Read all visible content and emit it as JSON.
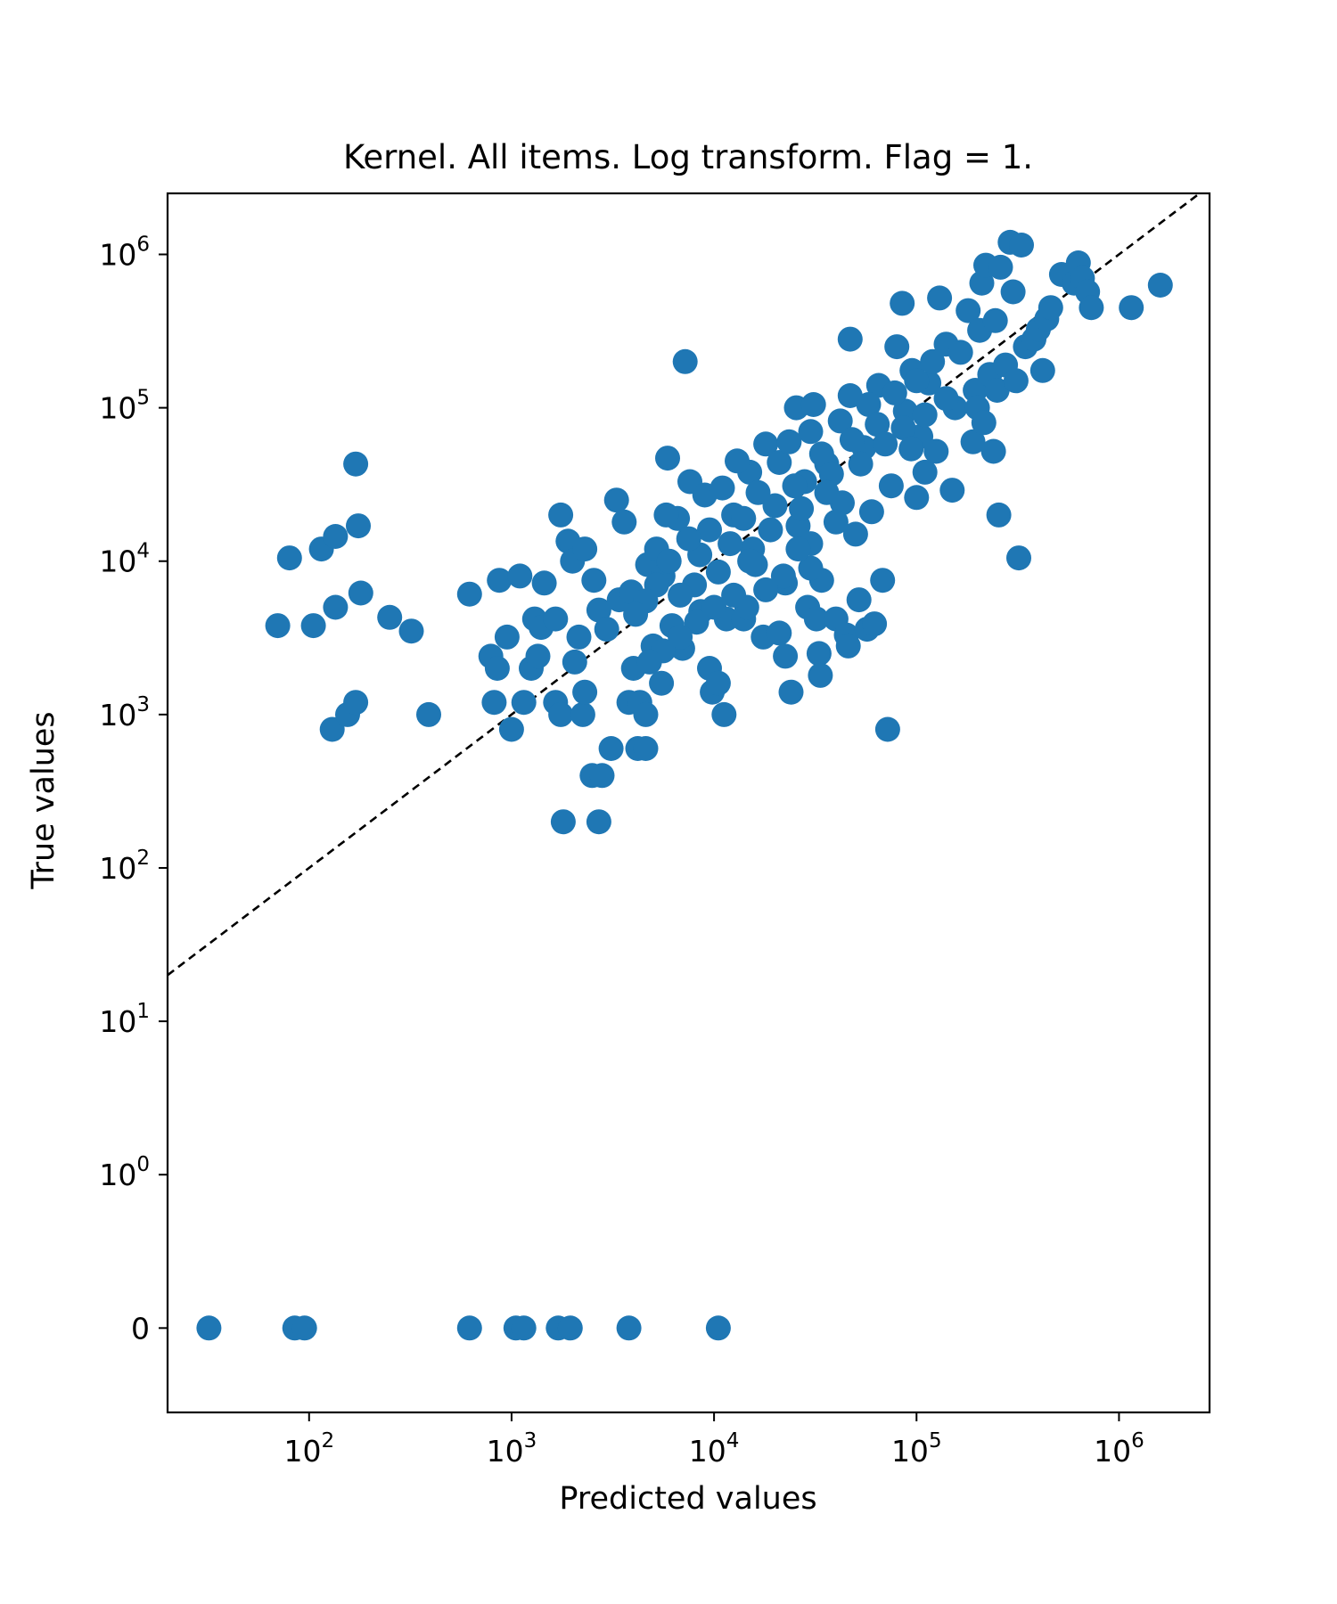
{
  "chart_data": {
    "type": "scatter",
    "title": "Kernel. All items. Log transform. Flag = 1.",
    "xlabel": "Predicted values",
    "ylabel": "True values",
    "x_scale": "log",
    "y_scale": "symlog",
    "xlim": [
      20,
      2800000
    ],
    "ylim": [
      -0.55,
      2500000
    ],
    "x_ticks": [
      {
        "value": 100,
        "base": "10",
        "exp": "2"
      },
      {
        "value": 1000,
        "base": "10",
        "exp": "3"
      },
      {
        "value": 10000,
        "base": "10",
        "exp": "4"
      },
      {
        "value": 100000,
        "base": "10",
        "exp": "5"
      },
      {
        "value": 1000000,
        "base": "10",
        "exp": "6"
      }
    ],
    "y_ticks": [
      {
        "value": 0,
        "label": "0"
      },
      {
        "value": 1,
        "base": "10",
        "exp": "0"
      },
      {
        "value": 10,
        "base": "10",
        "exp": "1"
      },
      {
        "value": 100,
        "base": "10",
        "exp": "2"
      },
      {
        "value": 1000,
        "base": "10",
        "exp": "3"
      },
      {
        "value": 10000,
        "base": "10",
        "exp": "4"
      },
      {
        "value": 100000,
        "base": "10",
        "exp": "5"
      },
      {
        "value": 1000000,
        "base": "10",
        "exp": "6"
      }
    ],
    "reference_line": "y = x (dashed, black)",
    "grid": false,
    "legend": "none",
    "marker_color": "#1f77b4",
    "series": [
      {
        "points": [
          [
            32,
            0
          ],
          [
            85,
            0
          ],
          [
            95,
            0
          ],
          [
            620,
            0
          ],
          [
            1050,
            0
          ],
          [
            1150,
            0
          ],
          [
            1700,
            0
          ],
          [
            1950,
            0
          ],
          [
            3800,
            0
          ],
          [
            10500,
            0
          ],
          [
            70,
            3800
          ],
          [
            80,
            10500
          ],
          [
            105,
            3800
          ],
          [
            115,
            12000
          ],
          [
            130,
            800
          ],
          [
            135,
            5000
          ],
          [
            135,
            14500
          ],
          [
            155,
            1000
          ],
          [
            170,
            1200
          ],
          [
            170,
            43000
          ],
          [
            175,
            17000
          ],
          [
            180,
            6200
          ],
          [
            250,
            4300
          ],
          [
            320,
            3500
          ],
          [
            390,
            1000
          ],
          [
            620,
            6100
          ],
          [
            790,
            2400
          ],
          [
            820,
            1200
          ],
          [
            850,
            2000
          ],
          [
            870,
            7500
          ],
          [
            950,
            3200
          ],
          [
            1000,
            800
          ],
          [
            1100,
            8000
          ],
          [
            1150,
            1200
          ],
          [
            1250,
            2000
          ],
          [
            1300,
            4200
          ],
          [
            1350,
            2400
          ],
          [
            1400,
            3700
          ],
          [
            1450,
            7200
          ],
          [
            1650,
            1200
          ],
          [
            1650,
            4200
          ],
          [
            1750,
            20000
          ],
          [
            1750,
            1000
          ],
          [
            1800,
            200
          ],
          [
            1900,
            13500
          ],
          [
            2050,
            2200
          ],
          [
            2000,
            10000
          ],
          [
            2250,
            1000
          ],
          [
            2300,
            1400
          ],
          [
            2300,
            12000
          ],
          [
            2150,
            3200
          ],
          [
            2500,
            400
          ],
          [
            2550,
            7500
          ],
          [
            2700,
            200
          ],
          [
            2800,
            400
          ],
          [
            2700,
            4800
          ],
          [
            2950,
            3600
          ],
          [
            3100,
            600
          ],
          [
            3300,
            25000
          ],
          [
            3400,
            5600
          ],
          [
            3600,
            18000
          ],
          [
            3800,
            1200
          ],
          [
            3900,
            6300
          ],
          [
            4000,
            2000
          ],
          [
            4200,
            600
          ],
          [
            4300,
            1200
          ],
          [
            4600,
            600
          ],
          [
            4600,
            1000
          ],
          [
            4700,
            9500
          ],
          [
            5000,
            2800
          ],
          [
            5200,
            12000
          ],
          [
            5500,
            1600
          ],
          [
            5600,
            8000
          ],
          [
            5900,
            47000
          ],
          [
            6200,
            3800
          ],
          [
            6600,
            19000
          ],
          [
            7000,
            2700
          ],
          [
            7200,
            200000
          ],
          [
            7600,
            33000
          ],
          [
            8000,
            7000
          ],
          [
            8600,
            4700
          ],
          [
            9500,
            2000
          ],
          [
            9800,
            1400
          ],
          [
            10500,
            1600
          ],
          [
            11200,
            1000
          ],
          [
            11500,
            4200
          ],
          [
            12500,
            20000
          ],
          [
            14000,
            4200
          ],
          [
            14500,
            5000
          ],
          [
            15000,
            38000
          ],
          [
            15500,
            12000
          ],
          [
            16000,
            9500
          ],
          [
            17500,
            3200
          ],
          [
            18000,
            58000
          ],
          [
            20000,
            23000
          ],
          [
            21000,
            3400
          ],
          [
            22500,
            2400
          ],
          [
            22500,
            7200
          ],
          [
            24000,
            1400
          ],
          [
            25500,
            100000
          ],
          [
            26000,
            17000
          ],
          [
            28000,
            33000
          ],
          [
            29000,
            5000
          ],
          [
            30000,
            13000
          ],
          [
            31000,
            105000
          ],
          [
            32000,
            4200
          ],
          [
            33000,
            2500
          ],
          [
            33500,
            1800
          ],
          [
            34000,
            7500
          ],
          [
            36000,
            43000
          ],
          [
            40000,
            4200
          ],
          [
            43000,
            24000
          ],
          [
            45000,
            3300
          ],
          [
            46000,
            2800
          ],
          [
            47000,
            120000
          ],
          [
            47000,
            280000
          ],
          [
            50000,
            15000
          ],
          [
            52000,
            5600
          ],
          [
            55000,
            55000
          ],
          [
            57000,
            3600
          ],
          [
            60000,
            21000
          ],
          [
            62000,
            3900
          ],
          [
            65000,
            140000
          ],
          [
            68000,
            7500
          ],
          [
            72000,
            800
          ],
          [
            75000,
            31000
          ],
          [
            80000,
            250000
          ],
          [
            85000,
            480000
          ],
          [
            88000,
            95000
          ],
          [
            95000,
            175000
          ],
          [
            100000,
            26000
          ],
          [
            105000,
            65000
          ],
          [
            110000,
            38000
          ],
          [
            115000,
            145000
          ],
          [
            120000,
            200000
          ],
          [
            130000,
            520000
          ],
          [
            140000,
            260000
          ],
          [
            150000,
            29000
          ],
          [
            155000,
            100000
          ],
          [
            165000,
            230000
          ],
          [
            180000,
            430000
          ],
          [
            190000,
            60000
          ],
          [
            195000,
            130000
          ],
          [
            200000,
            100000
          ],
          [
            205000,
            320000
          ],
          [
            210000,
            650000
          ],
          [
            215000,
            80000
          ],
          [
            220000,
            850000
          ],
          [
            230000,
            165000
          ],
          [
            240000,
            52000
          ],
          [
            245000,
            370000
          ],
          [
            250000,
            130000
          ],
          [
            255000,
            20000
          ],
          [
            260000,
            825000
          ],
          [
            275000,
            190000
          ],
          [
            290000,
            1200000
          ],
          [
            300000,
            570000
          ],
          [
            310000,
            150000
          ],
          [
            320000,
            10500
          ],
          [
            330000,
            1150000
          ],
          [
            345000,
            250000
          ],
          [
            380000,
            280000
          ],
          [
            400000,
            325000
          ],
          [
            420000,
            175000
          ],
          [
            440000,
            380000
          ],
          [
            460000,
            450000
          ],
          [
            520000,
            740000
          ],
          [
            600000,
            650000
          ],
          [
            630000,
            880000
          ],
          [
            660000,
            700000
          ],
          [
            700000,
            570000
          ],
          [
            730000,
            450000
          ],
          [
            1150000,
            450000
          ],
          [
            1600000,
            630000
          ],
          [
            9000,
            27000
          ],
          [
            11000,
            30000
          ],
          [
            13000,
            45000
          ],
          [
            9500,
            16000
          ],
          [
            8500,
            11000
          ],
          [
            7500,
            14000
          ],
          [
            6000,
            10000
          ],
          [
            5200,
            7000
          ],
          [
            4600,
            5500
          ],
          [
            4100,
            4500
          ],
          [
            6800,
            6000
          ],
          [
            5800,
            20000
          ],
          [
            10500,
            8500
          ],
          [
            12000,
            13000
          ],
          [
            14000,
            19000
          ],
          [
            16500,
            28000
          ],
          [
            19000,
            16000
          ],
          [
            21000,
            44000
          ],
          [
            23500,
            60000
          ],
          [
            25000,
            31000
          ],
          [
            27000,
            22000
          ],
          [
            30000,
            70000
          ],
          [
            34000,
            50000
          ],
          [
            38000,
            37000
          ],
          [
            42000,
            82000
          ],
          [
            48000,
            62000
          ],
          [
            53000,
            43000
          ],
          [
            58000,
            105000
          ],
          [
            64000,
            78000
          ],
          [
            70000,
            58000
          ],
          [
            78000,
            125000
          ],
          [
            86000,
            74000
          ],
          [
            94000,
            54000
          ],
          [
            100000,
            150000
          ],
          [
            110000,
            90000
          ],
          [
            125000,
            52000
          ],
          [
            140000,
            115000
          ],
          [
            36000,
            28000
          ],
          [
            40000,
            18000
          ],
          [
            30000,
            9000
          ],
          [
            26000,
            12000
          ],
          [
            22000,
            8000
          ],
          [
            18000,
            6500
          ],
          [
            15000,
            10000
          ],
          [
            12500,
            6000
          ],
          [
            10000,
            5000
          ],
          [
            8200,
            4000
          ],
          [
            6800,
            3200
          ],
          [
            5600,
            2600
          ],
          [
            4800,
            2200
          ]
        ]
      }
    ]
  }
}
